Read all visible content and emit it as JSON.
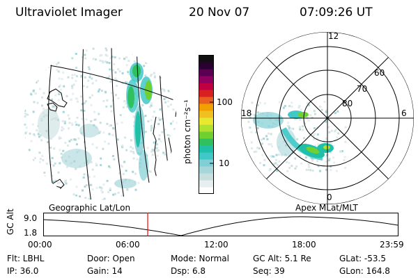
{
  "header": {
    "title": "Ultraviolet Imager",
    "date": "20 Nov 07",
    "time": "07:09:26 UT"
  },
  "colorbar": {
    "unit_label": "photon cm⁻²s⁻¹",
    "ticks": [
      "100",
      "10"
    ],
    "colors": [
      "#ffffff",
      "#e6eef0",
      "#c8dfe0",
      "#a6d6d9",
      "#7fcfd4",
      "#40c8c8",
      "#20c0a8",
      "#30c060",
      "#70d030",
      "#b0e030",
      "#e8e830",
      "#f0c020",
      "#f0a000",
      "#e86020",
      "#d82020",
      "#c00040",
      "#900060",
      "#5a0050",
      "#2a0030",
      "#101010"
    ]
  },
  "polar": {
    "mlt_labels": [
      "12",
      "18",
      "6",
      "0"
    ],
    "mlat_labels": [
      "60",
      "70",
      "80"
    ]
  },
  "orbit": {
    "left_label": "Geographic Lat/Lon",
    "right_label": "Apex MLat/MLT",
    "axis_title": "GC Alt",
    "y_ticks": [
      "9.0",
      "1.8"
    ],
    "time_ticks": [
      "00:00",
      "06:00",
      "12:00",
      "18:00",
      "23:59"
    ],
    "current_marker_color": "#ff0000"
  },
  "info": {
    "flt": "Flt: LBHL",
    "ip": "IP: 36.0",
    "door": "Door: Open",
    "gain": "Gain: 14",
    "mode": "Mode: Normal",
    "dsp": "Dsp:    6.8",
    "gcalt": "GC Alt: 5.1 Re",
    "seq": "Seq: 39",
    "glat": "GLat: -53.5",
    "glon": "GLon: 164.8"
  }
}
